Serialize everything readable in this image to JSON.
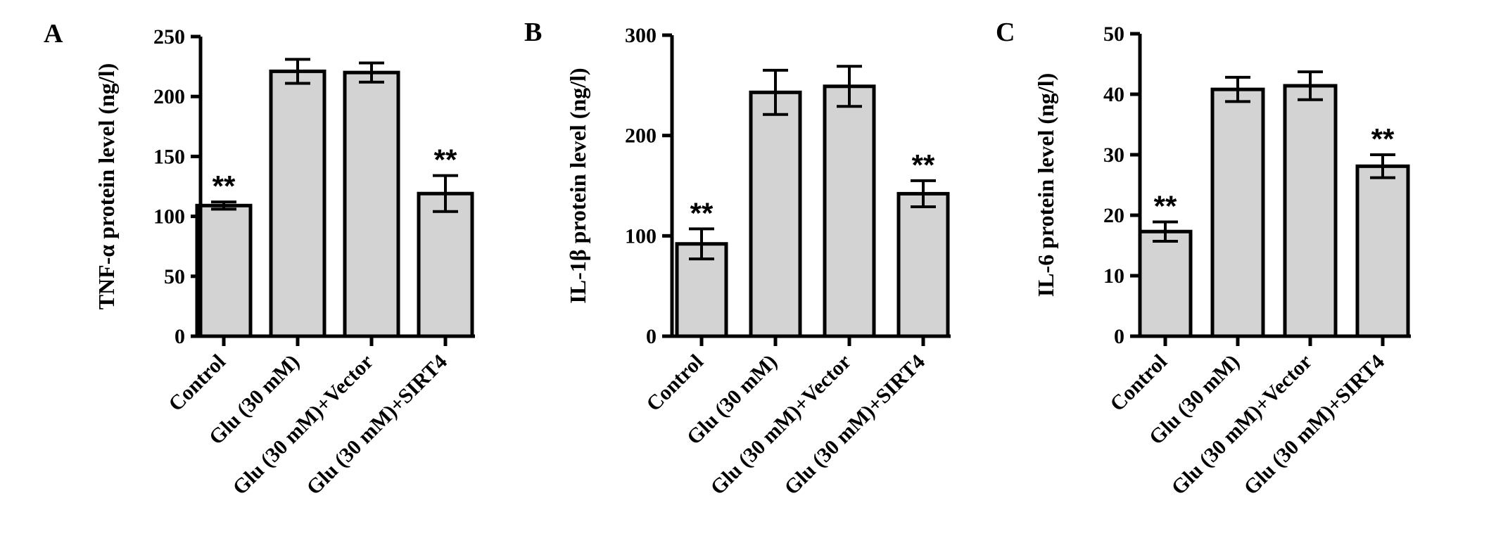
{
  "chart_data": [
    {
      "type": "bar",
      "panel": "A",
      "ylabel": "TNF-α protein level (ng/l)",
      "ylim": [
        0,
        250
      ],
      "yticks": [
        "0",
        "50",
        "100",
        "150",
        "200",
        "250"
      ],
      "categories": [
        "Control",
        "Glu (30 mM)",
        "Glu (30 mM)+Vector",
        "Glu (30 mM)+SIRT4"
      ],
      "values": [
        109,
        221,
        220,
        119
      ],
      "errors": [
        3,
        10,
        8,
        15
      ],
      "significance": [
        "**",
        "",
        "",
        "**"
      ]
    },
    {
      "type": "bar",
      "panel": "B",
      "ylabel": "IL-1β protein level (ng/l)",
      "ylim": [
        0,
        300
      ],
      "yticks": [
        "0",
        "100",
        "200",
        "300"
      ],
      "categories": [
        "Control",
        "Glu (30 mM)",
        "Glu (30 mM)+Vector",
        "Glu (30 mM)+SIRT4"
      ],
      "values": [
        92,
        243,
        249,
        142
      ],
      "errors": [
        15,
        22,
        20,
        13
      ],
      "significance": [
        "**",
        "",
        "",
        "**"
      ]
    },
    {
      "type": "bar",
      "panel": "C",
      "ylabel": "IL-6 protein level (ng/l)",
      "ylim": [
        0,
        50
      ],
      "yticks": [
        "0",
        "10",
        "20",
        "30",
        "40",
        "50"
      ],
      "categories": [
        "Control",
        "Glu (30 mM)",
        "Glu (30 mM)+Vector",
        "Glu (30 mM)+SIRT4"
      ],
      "values": [
        17.3,
        40.8,
        41.4,
        28.1
      ],
      "errors": [
        1.6,
        2,
        2.3,
        1.9
      ],
      "significance": [
        "**",
        "",
        "",
        "**"
      ]
    }
  ]
}
